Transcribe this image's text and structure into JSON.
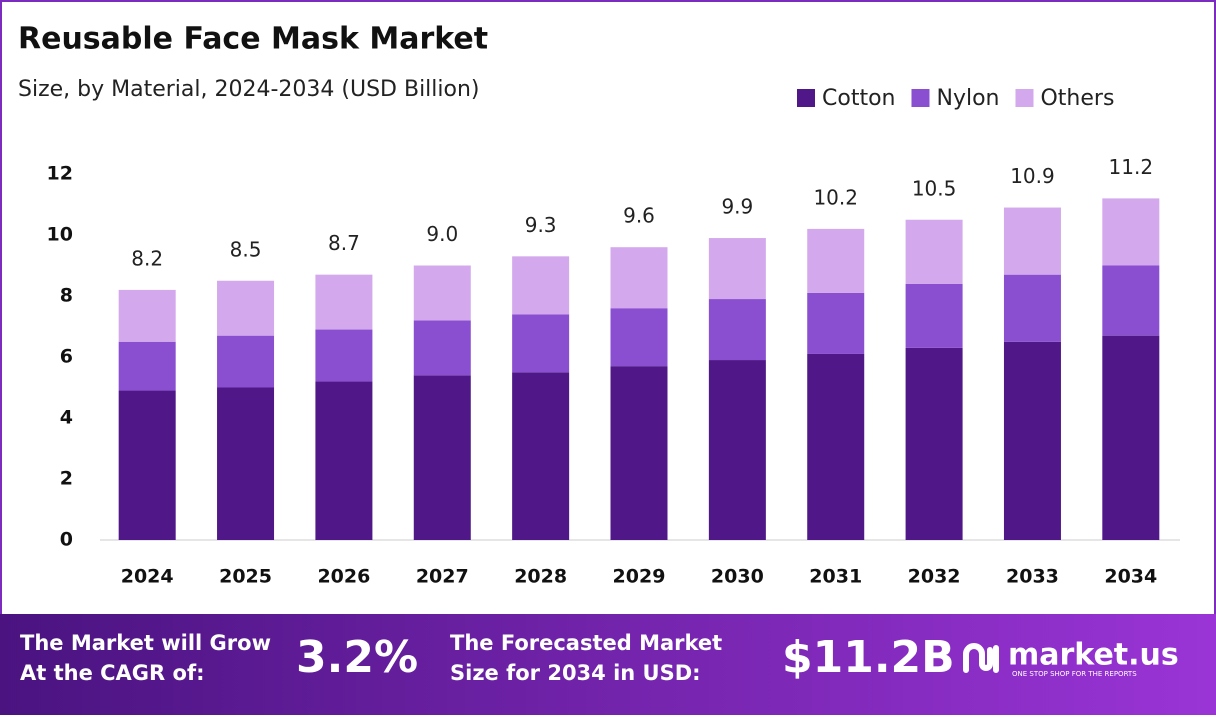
{
  "chart_data": {
    "type": "stacked-bar",
    "title": "Reusable Face Mask Market",
    "subtitle": "Size, by Material, 2024-2034 (USD Billion)",
    "categories": [
      "2024",
      "2025",
      "2026",
      "2027",
      "2028",
      "2029",
      "2030",
      "2031",
      "2032",
      "2033",
      "2034"
    ],
    "series": [
      {
        "name": "Cotton",
        "color": "#4f1787",
        "values": [
          4.9,
          5.0,
          5.2,
          5.4,
          5.5,
          5.7,
          5.9,
          6.1,
          6.3,
          6.5,
          6.7
        ]
      },
      {
        "name": "Nylon",
        "color": "#8a4fd0",
        "values": [
          1.6,
          1.7,
          1.7,
          1.8,
          1.9,
          1.9,
          2.0,
          2.0,
          2.1,
          2.2,
          2.3
        ]
      },
      {
        "name": "Others",
        "color": "#d3a8ec",
        "values": [
          1.7,
          1.8,
          1.8,
          1.8,
          1.9,
          2.0,
          2.0,
          2.1,
          2.1,
          2.2,
          2.2
        ]
      }
    ],
    "totals": {
      "values": [
        8.2,
        8.5,
        8.7,
        9.0,
        9.3,
        9.6,
        9.9,
        10.2,
        10.5,
        10.9,
        11.2
      ],
      "value_labels": [
        "8.2",
        "8.5",
        "8.7",
        "9.0",
        "9.3",
        "9.6",
        "9.9",
        "10.2",
        "10.5",
        "10.9",
        "11.2"
      ]
    },
    "ylim": [
      0,
      12
    ],
    "yticks": [
      0,
      2,
      4,
      6,
      8,
      10,
      12
    ],
    "grid": false,
    "legend": "top-right"
  },
  "footer": {
    "cagr_text": "The Market will Grow At the CAGR of:",
    "cagr": "3.2%",
    "forecast_text": "The Forecasted Market Size for 2034 in USD:",
    "forecast": "$11.2B",
    "logo": "market.us",
    "tagline": "ONE STOP SHOP FOR THE REPORTS"
  }
}
